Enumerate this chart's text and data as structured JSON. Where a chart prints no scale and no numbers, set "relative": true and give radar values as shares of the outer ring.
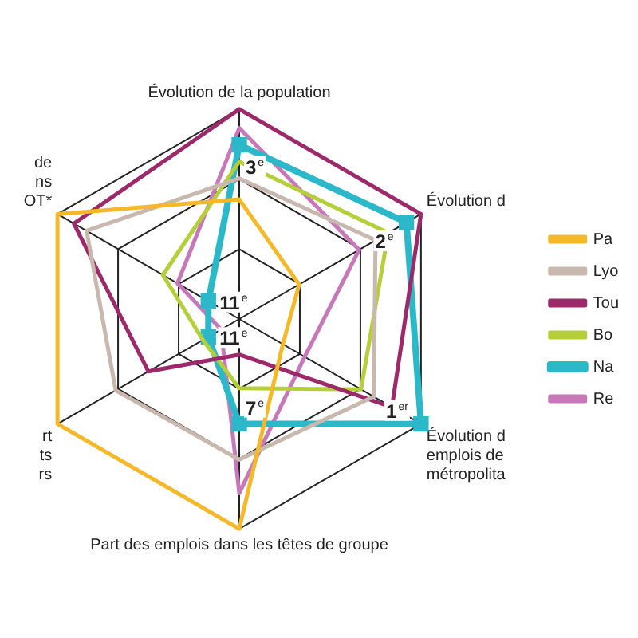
{
  "chart_data": {
    "type": "radar",
    "relative": true,
    "marker": "none",
    "legend": "right",
    "categories": [
      "Évolution de la population",
      "Évolution d",
      "Évolution d\nemplois de\nmétropolita",
      "Part des emplois dans les têtes de groupe",
      "rt\nts\nrs",
      "de\nns\nOT*"
    ],
    "series": [
      {
        "name": "Pa",
        "color": "#f5b829",
        "values": [
          0.57,
          0.33,
          0.24,
          1.0,
          1.0,
          1.0
        ]
      },
      {
        "name": "Lyo",
        "color": "#c9b8ae",
        "values": [
          0.67,
          0.75,
          0.74,
          0.67,
          0.68,
          0.84
        ]
      },
      {
        "name": "Tou",
        "color": "#9c2a6b",
        "values": [
          1.0,
          1.0,
          0.84,
          0.17,
          0.5,
          0.91
        ]
      },
      {
        "name": "Bo",
        "color": "#b5cf3a",
        "values": [
          0.75,
          0.82,
          0.67,
          0.33,
          0.2,
          0.42
        ]
      },
      {
        "name": "Na",
        "color": "#2bb8c9",
        "marker": "square",
        "values": [
          0.83,
          0.92,
          1.0,
          0.5,
          0.17,
          0.17
        ]
      },
      {
        "name": "Re",
        "color": "#c678b8",
        "values": [
          0.91,
          0.66,
          0.36,
          0.83,
          0.1,
          0.34
        ]
      }
    ],
    "annotations": [
      {
        "text": "3$^{e}$",
        "x": "Évolution de la population"
      },
      {
        "text": "2$^{e}$",
        "x": "Évolution d"
      },
      {
        "text": "1$^{er}$",
        "x": "Évolution d\nemplois de\nmétropolita"
      },
      {
        "text": "7$^{e}$",
        "x": "Part des emplois dans les têtes de groupe"
      },
      {
        "text": "11$^{e}$",
        "x": "rt\nts\nrs"
      },
      {
        "text": "11$^{e}$",
        "x": "de\nns\nOT*"
      }
    ]
  }
}
